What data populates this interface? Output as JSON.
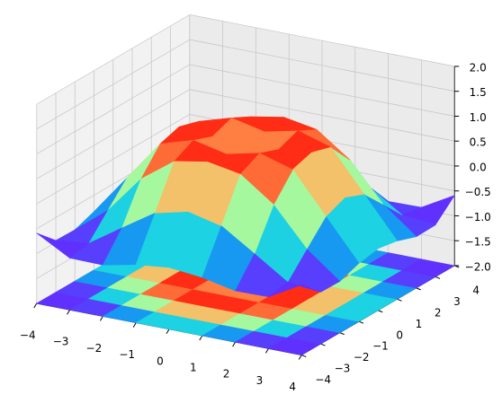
{
  "chart_data": {
    "type": "surface3d",
    "x": [
      -4,
      -3,
      -2,
      -1,
      0,
      1,
      2,
      3,
      4
    ],
    "y": [
      -4,
      -3,
      -2,
      -1,
      0,
      1,
      2,
      3,
      4
    ],
    "z": [
      [
        -0.59,
        -0.96,
        -0.97,
        -0.83,
        -0.76,
        -0.83,
        -0.97,
        -0.96,
        -0.59
      ],
      [
        -0.96,
        -0.89,
        -0.45,
        -0.02,
        0.14,
        -0.02,
        -0.45,
        -0.89,
        -0.96
      ],
      [
        -0.97,
        -0.45,
        0.31,
        0.79,
        0.91,
        0.79,
        0.31,
        -0.45,
        -0.97
      ],
      [
        -0.83,
        -0.02,
        0.79,
        0.99,
        0.84,
        0.99,
        0.79,
        -0.02,
        -0.83
      ],
      [
        -0.76,
        0.14,
        0.91,
        0.84,
        0,
        0.84,
        0.91,
        0.14,
        -0.76
      ],
      [
        -0.83,
        -0.02,
        0.79,
        0.99,
        0.84,
        0.99,
        0.79,
        -0.02,
        -0.83
      ],
      [
        -0.97,
        -0.45,
        0.31,
        0.79,
        0.91,
        0.79,
        0.31,
        -0.45,
        -0.97
      ],
      [
        -0.96,
        -0.89,
        -0.45,
        -0.02,
        0.14,
        -0.02,
        -0.45,
        -0.89,
        -0.96
      ],
      [
        -0.59,
        -0.96,
        -0.97,
        -0.83,
        -0.76,
        -0.83,
        -0.97,
        -0.96,
        -0.59
      ]
    ],
    "xlim": [
      -4,
      4
    ],
    "ylim": [
      -4,
      4
    ],
    "zlim": [
      -2,
      2
    ],
    "xticks": [
      {
        "value": -4,
        "label": "−4"
      },
      {
        "value": -3,
        "label": "−3"
      },
      {
        "value": -2,
        "label": "−2"
      },
      {
        "value": -1,
        "label": "−1"
      },
      0,
      1,
      2,
      3,
      4
    ],
    "yticks": [
      {
        "value": -4,
        "label": "−4"
      },
      {
        "value": -3,
        "label": "−3"
      },
      {
        "value": -2,
        "label": "−2"
      },
      {
        "value": -1,
        "label": "−1"
      },
      0,
      1,
      2,
      3,
      4
    ],
    "zticks": [
      {
        "value": -2,
        "label": "−2.0"
      },
      {
        "value": -1.5,
        "label": "−1.5"
      },
      {
        "value": -1,
        "label": "−1.0"
      },
      {
        "value": -0.5,
        "label": "−0.5"
      },
      {
        "value": 0,
        "label": "0.0"
      },
      {
        "value": 0.5,
        "label": "0.5"
      },
      {
        "value": 1,
        "label": "1.0"
      },
      {
        "value": 1.5,
        "label": "1.5"
      },
      {
        "value": 2,
        "label": "2.0"
      }
    ],
    "colormap": "rainbow",
    "grid": true,
    "projected_contour": true
  }
}
